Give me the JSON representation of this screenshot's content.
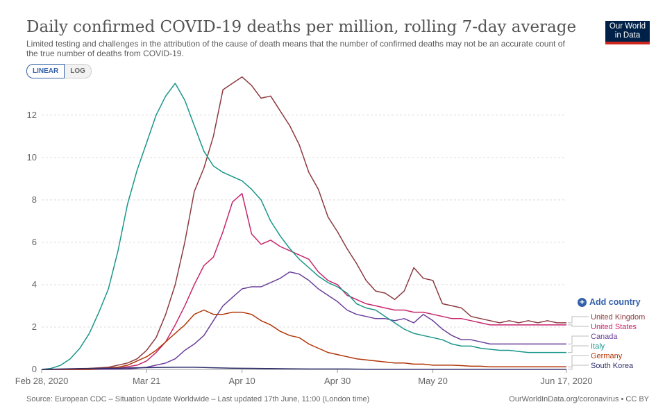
{
  "header": {
    "title": "Daily confirmed COVID-19 deaths per million, rolling 7-day average",
    "subtitle": "Limited testing and challenges in the attribution of the cause of death means that the number of confirmed deaths may not be an accurate count of the true number of deaths from COVID-19.",
    "logo_line1": "Our World",
    "logo_line2": "in Data"
  },
  "controls": {
    "linear_label": "LINEAR",
    "log_label": "LOG",
    "add_country_label": "Add country"
  },
  "footer": {
    "source": "Source: European CDC – Situation Update Worldwide – Last updated 17th June, 11:00 (London time)",
    "credit": "OurWorldInData.org/coronavirus • CC BY"
  },
  "chart_data": {
    "type": "line",
    "title": "Daily confirmed COVID-19 deaths per million, rolling 7-day average",
    "xlabel": "",
    "ylabel": "",
    "x_start": "2020-02-28",
    "x_end": "2020-06-17",
    "xlim": [
      "2020-02-28",
      "2020-06-17"
    ],
    "ylim": [
      0,
      13.5
    ],
    "yticks": [
      0,
      2,
      4,
      6,
      8,
      10,
      12
    ],
    "xtick_labels": [
      "Feb 28, 2020",
      "Mar 21",
      "Apr 10",
      "Apr 30",
      "May 20",
      "Jun 17, 2020"
    ],
    "xtick_days": [
      0,
      22,
      42,
      62,
      82,
      110
    ],
    "grid": "horizontal dashed",
    "legend_position": "right",
    "series": [
      {
        "name": "United Kingdom",
        "color": "#8c3a3f",
        "points": [
          [
            0,
            0
          ],
          [
            8,
            0.02
          ],
          [
            14,
            0.1
          ],
          [
            18,
            0.3
          ],
          [
            20,
            0.5
          ],
          [
            22,
            0.9
          ],
          [
            24,
            1.5
          ],
          [
            26,
            2.6
          ],
          [
            28,
            4
          ],
          [
            30,
            6
          ],
          [
            32,
            8.4
          ],
          [
            34,
            9.5
          ],
          [
            36,
            11
          ],
          [
            38,
            13.2
          ],
          [
            40,
            13.5
          ],
          [
            42,
            13.8
          ],
          [
            44,
            13.4
          ],
          [
            46,
            12.8
          ],
          [
            48,
            12.9
          ],
          [
            50,
            12.2
          ],
          [
            52,
            11.5
          ],
          [
            54,
            10.6
          ],
          [
            56,
            9.3
          ],
          [
            58,
            8.5
          ],
          [
            60,
            7.2
          ],
          [
            62,
            6.5
          ],
          [
            64,
            5.7
          ],
          [
            66,
            5
          ],
          [
            68,
            4.2
          ],
          [
            70,
            3.7
          ],
          [
            72,
            3.6
          ],
          [
            74,
            3.3
          ],
          [
            76,
            3.7
          ],
          [
            78,
            4.8
          ],
          [
            80,
            4.3
          ],
          [
            82,
            4.2
          ],
          [
            84,
            3.1
          ],
          [
            86,
            3
          ],
          [
            88,
            2.9
          ],
          [
            90,
            2.5
          ],
          [
            92,
            2.4
          ],
          [
            94,
            2.3
          ],
          [
            96,
            2.2
          ],
          [
            98,
            2.3
          ],
          [
            100,
            2.2
          ],
          [
            102,
            2.3
          ],
          [
            104,
            2.2
          ],
          [
            106,
            2.3
          ],
          [
            108,
            2.2
          ],
          [
            110,
            2.2
          ]
        ]
      },
      {
        "name": "United States",
        "color": "#c8256c",
        "points": [
          [
            0,
            0
          ],
          [
            8,
            0
          ],
          [
            16,
            0.05
          ],
          [
            20,
            0.2
          ],
          [
            22,
            0.4
          ],
          [
            24,
            0.8
          ],
          [
            26,
            1.3
          ],
          [
            28,
            2.1
          ],
          [
            30,
            3
          ],
          [
            32,
            4
          ],
          [
            34,
            4.9
          ],
          [
            36,
            5.3
          ],
          [
            38,
            6.5
          ],
          [
            40,
            7.9
          ],
          [
            42,
            8.3
          ],
          [
            44,
            6.4
          ],
          [
            46,
            5.9
          ],
          [
            48,
            6.1
          ],
          [
            50,
            5.8
          ],
          [
            52,
            5.6
          ],
          [
            54,
            5.4
          ],
          [
            56,
            5.2
          ],
          [
            58,
            4.6
          ],
          [
            60,
            4.2
          ],
          [
            62,
            4
          ],
          [
            64,
            3.5
          ],
          [
            66,
            3.3
          ],
          [
            68,
            3.1
          ],
          [
            70,
            3
          ],
          [
            72,
            2.9
          ],
          [
            74,
            2.8
          ],
          [
            76,
            2.8
          ],
          [
            78,
            2.7
          ],
          [
            80,
            2.7
          ],
          [
            82,
            2.6
          ],
          [
            84,
            2.5
          ],
          [
            86,
            2.4
          ],
          [
            88,
            2.4
          ],
          [
            90,
            2.3
          ],
          [
            92,
            2.2
          ],
          [
            94,
            2.1
          ],
          [
            96,
            2.1
          ],
          [
            98,
            2.1
          ],
          [
            100,
            2.1
          ],
          [
            102,
            2.1
          ],
          [
            104,
            2.1
          ],
          [
            106,
            2.1
          ],
          [
            108,
            2.1
          ],
          [
            110,
            2.1
          ]
        ]
      },
      {
        "name": "Canada",
        "color": "#6a3d9a",
        "points": [
          [
            0,
            0
          ],
          [
            10,
            0
          ],
          [
            18,
            0.02
          ],
          [
            22,
            0.1
          ],
          [
            26,
            0.3
          ],
          [
            28,
            0.5
          ],
          [
            30,
            0.9
          ],
          [
            32,
            1.2
          ],
          [
            34,
            1.6
          ],
          [
            36,
            2.3
          ],
          [
            38,
            3
          ],
          [
            40,
            3.4
          ],
          [
            42,
            3.8
          ],
          [
            44,
            3.9
          ],
          [
            46,
            3.9
          ],
          [
            48,
            4.1
          ],
          [
            50,
            4.3
          ],
          [
            52,
            4.6
          ],
          [
            54,
            4.5
          ],
          [
            56,
            4.2
          ],
          [
            58,
            3.8
          ],
          [
            60,
            3.5
          ],
          [
            62,
            3.2
          ],
          [
            64,
            2.8
          ],
          [
            66,
            2.6
          ],
          [
            68,
            2.5
          ],
          [
            70,
            2.4
          ],
          [
            72,
            2.4
          ],
          [
            74,
            2.3
          ],
          [
            76,
            2.4
          ],
          [
            78,
            2.2
          ],
          [
            80,
            2.6
          ],
          [
            82,
            2.3
          ],
          [
            84,
            1.9
          ],
          [
            86,
            1.6
          ],
          [
            88,
            1.4
          ],
          [
            90,
            1.4
          ],
          [
            92,
            1.3
          ],
          [
            94,
            1.2
          ],
          [
            96,
            1.2
          ],
          [
            98,
            1.2
          ],
          [
            100,
            1.2
          ],
          [
            102,
            1.2
          ],
          [
            104,
            1.2
          ],
          [
            106,
            1.2
          ],
          [
            108,
            1.2
          ],
          [
            110,
            1.2
          ]
        ]
      },
      {
        "name": "Italy",
        "color": "#18968a",
        "points": [
          [
            0,
            0
          ],
          [
            2,
            0.05
          ],
          [
            4,
            0.2
          ],
          [
            6,
            0.5
          ],
          [
            8,
            1
          ],
          [
            10,
            1.7
          ],
          [
            12,
            2.7
          ],
          [
            14,
            3.8
          ],
          [
            16,
            5.6
          ],
          [
            18,
            7.8
          ],
          [
            20,
            9.4
          ],
          [
            22,
            10.7
          ],
          [
            24,
            12
          ],
          [
            26,
            12.9
          ],
          [
            28,
            13.5
          ],
          [
            30,
            12.7
          ],
          [
            32,
            11.5
          ],
          [
            34,
            10.3
          ],
          [
            36,
            9.6
          ],
          [
            38,
            9.3
          ],
          [
            40,
            9.1
          ],
          [
            42,
            8.9
          ],
          [
            44,
            8.5
          ],
          [
            46,
            8
          ],
          [
            48,
            7
          ],
          [
            50,
            6.3
          ],
          [
            52,
            5.7
          ],
          [
            54,
            5.2
          ],
          [
            56,
            4.8
          ],
          [
            58,
            4.4
          ],
          [
            60,
            4.1
          ],
          [
            62,
            3.9
          ],
          [
            64,
            3.6
          ],
          [
            66,
            3.1
          ],
          [
            68,
            2.9
          ],
          [
            70,
            2.8
          ],
          [
            72,
            2.5
          ],
          [
            74,
            2.2
          ],
          [
            76,
            1.9
          ],
          [
            78,
            1.7
          ],
          [
            80,
            1.6
          ],
          [
            82,
            1.5
          ],
          [
            84,
            1.4
          ],
          [
            86,
            1.2
          ],
          [
            88,
            1.1
          ],
          [
            90,
            1.1
          ],
          [
            92,
            1
          ],
          [
            94,
            0.95
          ],
          [
            96,
            0.9
          ],
          [
            98,
            0.9
          ],
          [
            100,
            0.85
          ],
          [
            102,
            0.8
          ],
          [
            104,
            0.8
          ],
          [
            106,
            0.8
          ],
          [
            108,
            0.8
          ],
          [
            110,
            0.8
          ]
        ]
      },
      {
        "name": "Germany",
        "color": "#b13507",
        "points": [
          [
            0,
            0
          ],
          [
            10,
            0
          ],
          [
            16,
            0.1
          ],
          [
            18,
            0.2
          ],
          [
            20,
            0.4
          ],
          [
            22,
            0.6
          ],
          [
            24,
            0.9
          ],
          [
            26,
            1.3
          ],
          [
            28,
            1.7
          ],
          [
            30,
            2.1
          ],
          [
            32,
            2.6
          ],
          [
            34,
            2.8
          ],
          [
            36,
            2.6
          ],
          [
            38,
            2.6
          ],
          [
            40,
            2.7
          ],
          [
            42,
            2.7
          ],
          [
            44,
            2.6
          ],
          [
            46,
            2.3
          ],
          [
            48,
            2.1
          ],
          [
            50,
            1.8
          ],
          [
            52,
            1.6
          ],
          [
            54,
            1.5
          ],
          [
            56,
            1.2
          ],
          [
            58,
            1
          ],
          [
            60,
            0.8
          ],
          [
            62,
            0.7
          ],
          [
            64,
            0.6
          ],
          [
            66,
            0.5
          ],
          [
            68,
            0.45
          ],
          [
            70,
            0.4
          ],
          [
            72,
            0.35
          ],
          [
            74,
            0.3
          ],
          [
            76,
            0.3
          ],
          [
            78,
            0.25
          ],
          [
            80,
            0.25
          ],
          [
            82,
            0.2
          ],
          [
            84,
            0.2
          ],
          [
            86,
            0.2
          ],
          [
            88,
            0.18
          ],
          [
            90,
            0.15
          ],
          [
            92,
            0.15
          ],
          [
            94,
            0.12
          ],
          [
            96,
            0.12
          ],
          [
            98,
            0.12
          ],
          [
            100,
            0.12
          ],
          [
            102,
            0.12
          ],
          [
            104,
            0.12
          ],
          [
            106,
            0.12
          ],
          [
            108,
            0.12
          ],
          [
            110,
            0.12
          ]
        ]
      },
      {
        "name": "South Korea",
        "color": "#2d2d6b",
        "points": [
          [
            0,
            0
          ],
          [
            4,
            0.02
          ],
          [
            8,
            0.04
          ],
          [
            12,
            0.05
          ],
          [
            16,
            0.06
          ],
          [
            20,
            0.08
          ],
          [
            24,
            0.09
          ],
          [
            28,
            0.1
          ],
          [
            32,
            0.1
          ],
          [
            36,
            0.08
          ],
          [
            40,
            0.06
          ],
          [
            44,
            0.05
          ],
          [
            48,
            0.04
          ],
          [
            52,
            0.03
          ],
          [
            56,
            0.02
          ],
          [
            60,
            0.02
          ],
          [
            64,
            0.02
          ],
          [
            68,
            0.01
          ],
          [
            72,
            0.01
          ],
          [
            76,
            0.01
          ],
          [
            80,
            0.01
          ],
          [
            84,
            0.01
          ],
          [
            88,
            0.01
          ],
          [
            92,
            0.01
          ],
          [
            96,
            0.01
          ],
          [
            100,
            0.01
          ],
          [
            104,
            0.01
          ],
          [
            108,
            0.01
          ],
          [
            110,
            0.01
          ]
        ]
      }
    ]
  }
}
